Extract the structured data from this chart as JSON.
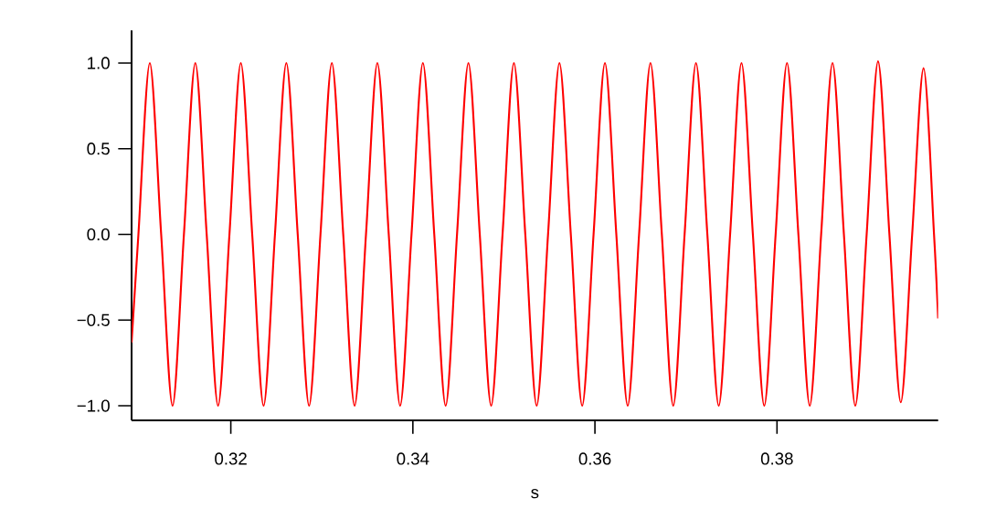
{
  "chart_data": {
    "type": "line",
    "xlabel": "s",
    "xlim": [
      0.3091,
      0.3977
    ],
    "ylim": [
      -1.085,
      1.19
    ],
    "xticks": [
      0.32,
      0.34,
      0.36,
      0.38
    ],
    "yticks": [
      {
        "value": -1.0,
        "label": "−1.0"
      },
      {
        "value": -0.5,
        "label": "−0.5"
      },
      {
        "value": 0.0,
        "label": "0.0"
      },
      {
        "value": 0.5,
        "label": "0.5"
      },
      {
        "value": 1.0,
        "label": "1.0"
      }
    ],
    "grid": false,
    "marker": "none",
    "line_style": "solid",
    "series": [
      {
        "color": "#ff0000",
        "x": [
          0.3091,
          0.30985,
          0.3111,
          0.31235,
          0.3136,
          0.31485,
          0.3161,
          0.31735,
          0.3186,
          0.31985,
          0.3211,
          0.32235,
          0.3236,
          0.32485,
          0.3261,
          0.32735,
          0.3286,
          0.32985,
          0.3311,
          0.33235,
          0.3336,
          0.33485,
          0.3361,
          0.33735,
          0.3386,
          0.33985,
          0.3411,
          0.34235,
          0.3436,
          0.34485,
          0.3461,
          0.34735,
          0.3486,
          0.34985,
          0.3511,
          0.35235,
          0.3536,
          0.35485,
          0.3561,
          0.35735,
          0.3586,
          0.35985,
          0.3611,
          0.36235,
          0.3636,
          0.36485,
          0.3661,
          0.36735,
          0.3686,
          0.36985,
          0.3711,
          0.37235,
          0.3736,
          0.37485,
          0.3761,
          0.37735,
          0.3786,
          0.37985,
          0.3811,
          0.38235,
          0.3836,
          0.38485,
          0.3861,
          0.38735,
          0.3886,
          0.38985,
          0.3911,
          0.39235,
          0.3936,
          0.39485,
          0.3961,
          0.39725,
          0.3977
        ],
        "values": [
          -0.63,
          0,
          1,
          0,
          -1,
          0,
          1,
          0,
          -1,
          0,
          1,
          0,
          -1,
          0,
          1,
          0,
          -1,
          0,
          1,
          0,
          -1,
          0,
          1,
          0,
          -1,
          0,
          1,
          0,
          -1,
          0,
          1,
          0,
          -1,
          0,
          1,
          0,
          -1,
          0,
          1,
          0,
          -1,
          0,
          1,
          0,
          -1,
          0,
          1,
          0,
          -1,
          0,
          1,
          0,
          -1,
          0,
          1,
          0,
          -1,
          0,
          1,
          0,
          -1,
          0,
          1,
          0,
          -1,
          0,
          1.01,
          0,
          -0.98,
          0,
          0.97,
          0,
          -0.49
        ]
      }
    ]
  }
}
